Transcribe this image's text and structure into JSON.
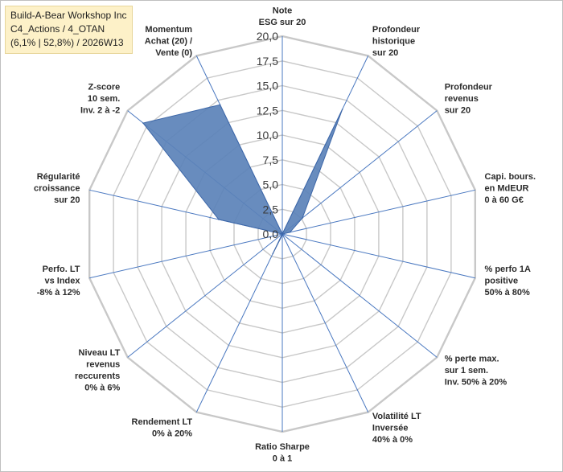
{
  "title": {
    "line1": "Build-A-Bear Workshop Inc",
    "line2": "C4_Actions / 4_OTAN",
    "line3": "(6,1% | 52,8%) / 2026W13"
  },
  "colors": {
    "fill": "#5b82b8",
    "stroke": "#3d67a8",
    "grid": "#c8c8c8",
    "spoke": "#4a78c0"
  },
  "chart_data": {
    "type": "radar",
    "title": "",
    "rlim": [
      0,
      20
    ],
    "ticks": [
      0,
      2.5,
      5,
      7.5,
      10,
      12.5,
      15,
      17.5,
      20
    ],
    "tick_labels": [
      "0,0",
      "2,5",
      "5,0",
      "7,5",
      "10,0",
      "12,5",
      "15,0",
      "17,5",
      "20,0"
    ],
    "grid": true,
    "categories": [
      [
        "Note",
        "ESG sur 20"
      ],
      [
        "Profondeur",
        "historique",
        "sur 20"
      ],
      [
        "Profondeur",
        "revenus",
        "sur 20"
      ],
      [
        "Capi. bours.",
        "en MdEUR",
        "0 à 60 G€"
      ],
      [
        "% perfo 1A",
        "positive",
        "50% à 80%"
      ],
      [
        "% perte max.",
        "sur 1 sem.",
        "Inv. 50% à 20%"
      ],
      [
        "Volatilité LT",
        "Inversée",
        "40% à 0%"
      ],
      [
        "Ratio Sharpe",
        "0 à 1"
      ],
      [
        "Rendement LT",
        "0% à 20%"
      ],
      [
        "Niveau LT",
        "revenus",
        "reccurents",
        "0% à 6%"
      ],
      [
        "Perfo. LT",
        "vs Index",
        "-8% à 12%"
      ],
      [
        "Régularité",
        "croissance",
        "sur 20"
      ],
      [
        "Z-score",
        "10 sem.",
        "Inv. 2 à -2"
      ],
      [
        "Momentum",
        "Achat (20) /",
        "Vente (0)"
      ]
    ],
    "series": [
      {
        "values": [
          0,
          14.0,
          2.6,
          0.8,
          0,
          0,
          0,
          0.1,
          2.2,
          0,
          0,
          6.6,
          18.0,
          14.5
        ]
      }
    ]
  }
}
